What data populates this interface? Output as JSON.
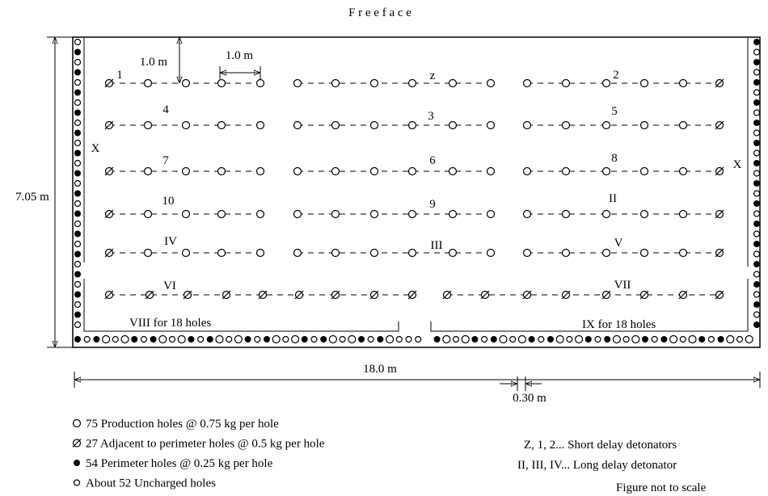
{
  "title": "F r e e   f a c e",
  "dimensions": {
    "height": "7.05 m",
    "burden": "1.0 m",
    "spacing": "1.0 m",
    "width": "18.0 m",
    "perimeter_spacing": "0.30 m"
  },
  "labels": [
    "1",
    "z",
    "2",
    "4",
    "3",
    "5",
    "X",
    "7",
    "6",
    "8",
    "X",
    "10",
    "9",
    "II",
    "IV",
    "III",
    "V",
    "VI",
    "VII",
    "VIII for 18 holes",
    "IX for 18 holes"
  ],
  "legend": [
    "75 Production holes @ 0.75 kg per hole",
    "27 Adjacent to perimeter holes @ 0.5 kg per hole",
    "54 Perimeter holes @ 0.25 kg per hole",
    "About 52 Uncharged holes"
  ],
  "notes": [
    "Z, 1, 2... Short delay detonators",
    "II, III, IV... Long delay detonator",
    "Figure not to scale"
  ]
}
